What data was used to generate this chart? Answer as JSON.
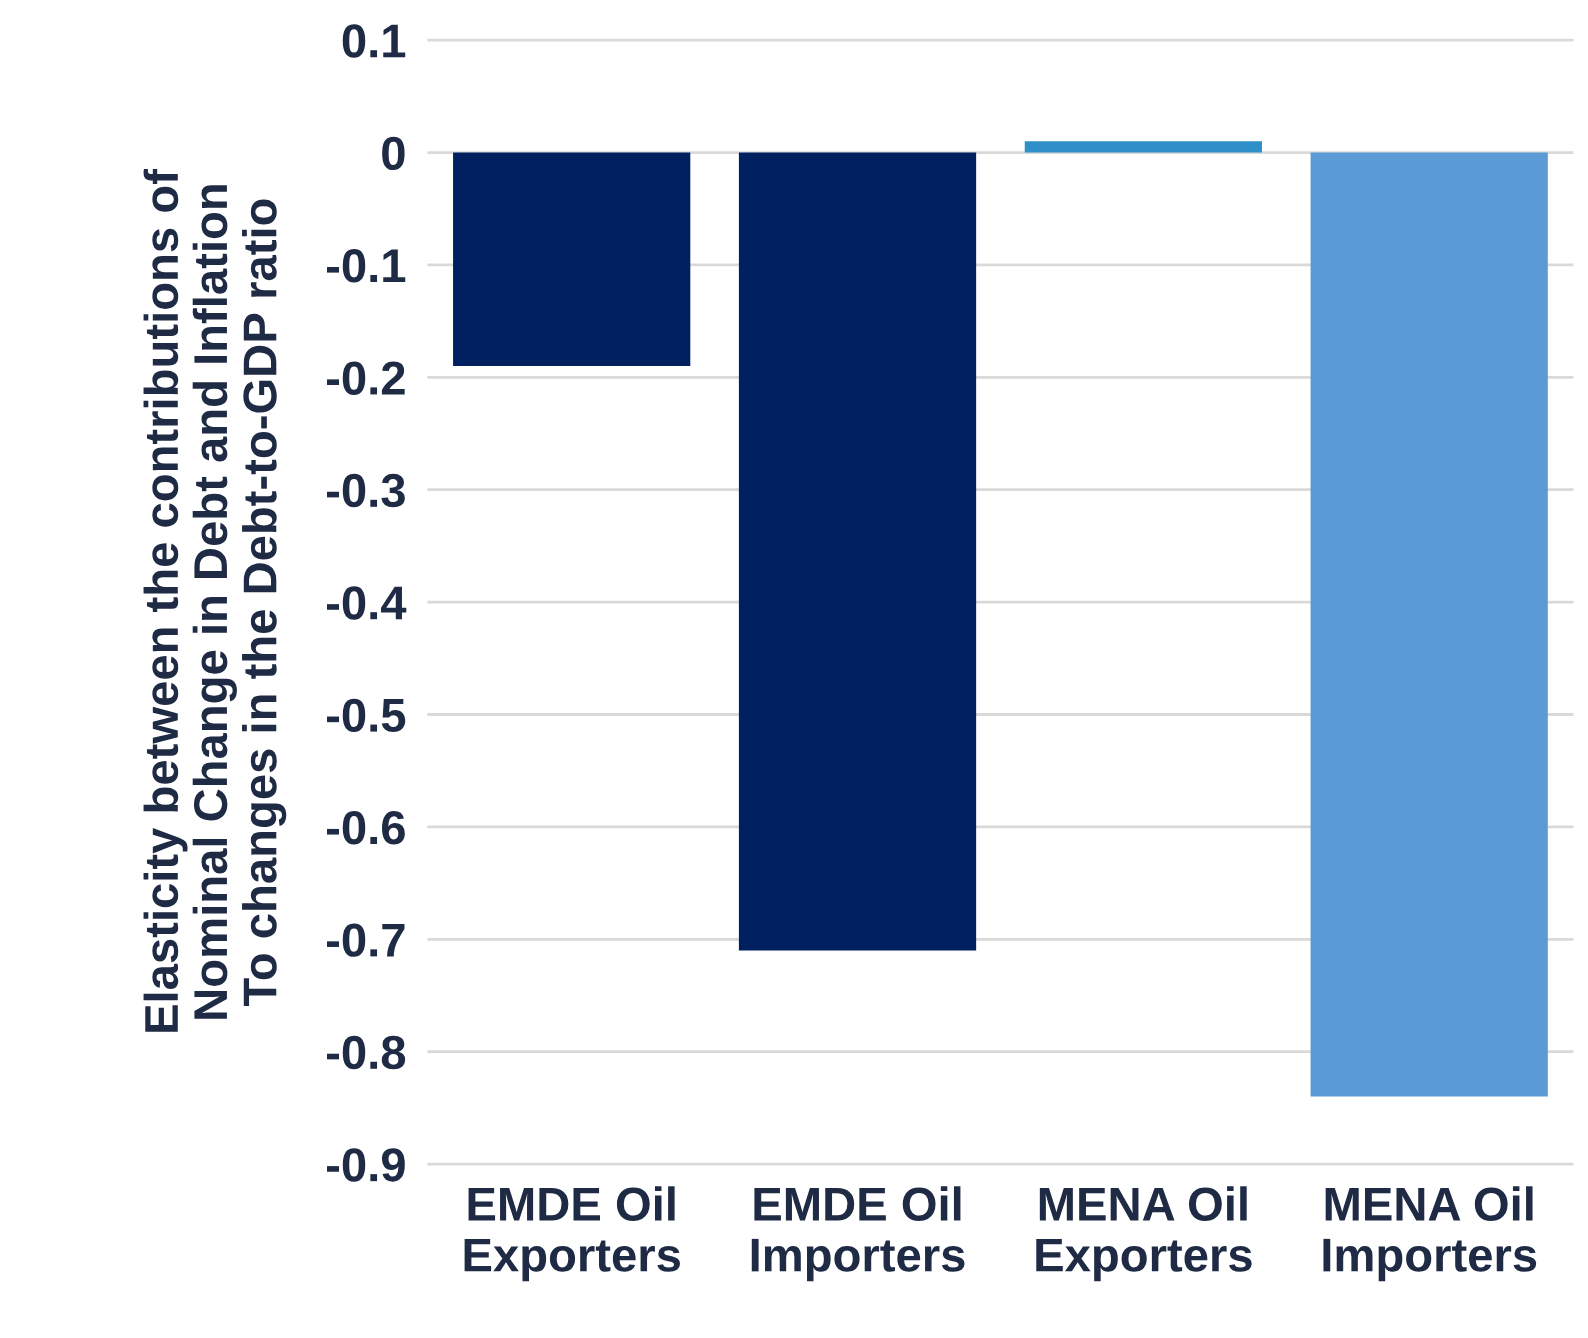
{
  "chart_data": {
    "type": "bar",
    "ylabel": "Elasticity between the contributions of\nNominal Change in Debt and Inflation\nTo changes in the Debt-to-GDP ratio",
    "categories": [
      "EMDE Oil\nExporters",
      "EMDE Oil\nImporters",
      "MENA Oil\nExporters",
      "MENA Oil\nImporters"
    ],
    "values": [
      -0.19,
      -0.71,
      0.01,
      -0.84
    ],
    "colors": [
      "#002060",
      "#002060",
      "#2e8fc9",
      "#5b9bd5"
    ],
    "ylim": [
      -0.9,
      0.1
    ],
    "yticks": [
      {
        "value": -0.9,
        "label": "-0.9"
      },
      {
        "value": -0.8,
        "label": "-0.8"
      },
      {
        "value": -0.7,
        "label": "-0.7"
      },
      {
        "value": -0.6,
        "label": "-0.6"
      },
      {
        "value": -0.5,
        "label": "-0.5"
      },
      {
        "value": -0.4,
        "label": "-0.4"
      },
      {
        "value": -0.3,
        "label": "-0.3"
      },
      {
        "value": -0.2,
        "label": "-0.2"
      },
      {
        "value": -0.1,
        "label": "-0.1"
      },
      0,
      0.1
    ],
    "grid": "y"
  }
}
